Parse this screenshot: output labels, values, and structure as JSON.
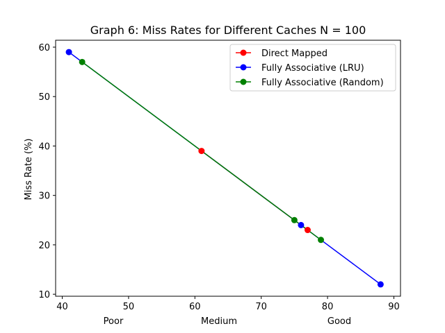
{
  "chart_data": {
    "type": "line",
    "title": "Graph 6: Miss Rates for Different Caches N = 100",
    "xlabel": "",
    "ylabel": "Miss Rate (%)",
    "xlim": [
      39,
      91
    ],
    "ylim": [
      9.6,
      61.4
    ],
    "xticks": [
      40,
      50,
      60,
      70,
      80,
      90
    ],
    "yticks": [
      10,
      20,
      30,
      40,
      50,
      60
    ],
    "grid": false,
    "legend_position": "top-right",
    "category_annotations": [
      "Poor",
      "Medium",
      "Good"
    ],
    "series": [
      {
        "name": "Direct Mapped",
        "color": "#ff0000",
        "marker": "circle",
        "points": [
          [
            61,
            39
          ],
          [
            77,
            23
          ]
        ]
      },
      {
        "name": "Fully Associative (LRU)",
        "color": "#0000ff",
        "marker": "circle",
        "points": [
          [
            41,
            59
          ],
          [
            76,
            24
          ],
          [
            88,
            12
          ]
        ]
      },
      {
        "name": "Fully Associative (Random)",
        "color": "#008000",
        "marker": "circle",
        "points": [
          [
            43,
            57
          ],
          [
            75,
            25
          ],
          [
            79,
            21
          ]
        ]
      }
    ]
  }
}
